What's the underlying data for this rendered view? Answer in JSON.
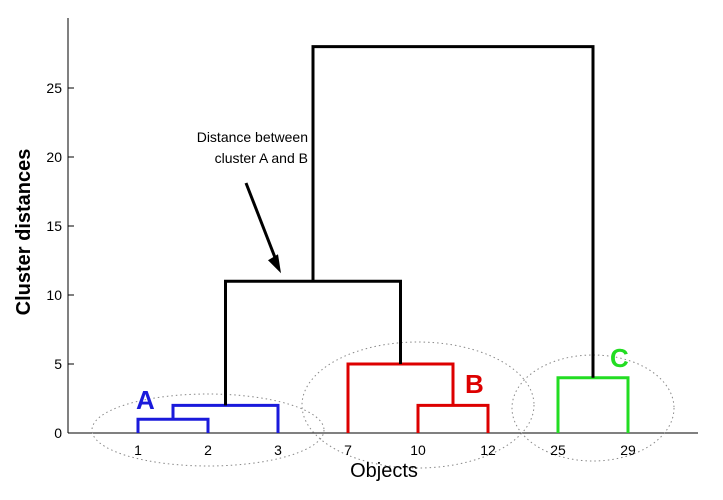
{
  "chart_data": {
    "type": "dendrogram",
    "xlabel": "Objects",
    "ylabel": "Cluster distances",
    "ylim": [
      0,
      29
    ],
    "yticks": [
      0,
      5,
      10,
      15,
      20,
      25
    ],
    "leaves": [
      "1",
      "2",
      "3",
      "7",
      "10",
      "12",
      "25",
      "29"
    ],
    "clusters": [
      {
        "name": "A",
        "color": "#1a1adb",
        "leaves": [
          "1",
          "2",
          "3"
        ]
      },
      {
        "name": "B",
        "color": "#dd0000",
        "leaves": [
          "7",
          "10",
          "12"
        ]
      },
      {
        "name": "C",
        "color": "#22dd22",
        "leaves": [
          "25",
          "29"
        ]
      }
    ],
    "merges": [
      {
        "left": "1",
        "right": "2",
        "height": 1,
        "color": "#1a1adb"
      },
      {
        "left": "(1,2)",
        "right": "3",
        "height": 2,
        "color": "#1a1adb"
      },
      {
        "left": "10",
        "right": "12",
        "height": 2,
        "color": "#dd0000"
      },
      {
        "left": "7",
        "right": "(10,12)",
        "height": 5,
        "color": "#dd0000"
      },
      {
        "left": "25",
        "right": "29",
        "height": 4,
        "color": "#22dd22"
      },
      {
        "left": "A",
        "right": "B",
        "height": 11,
        "color": "#000000"
      },
      {
        "left": "(A,B)",
        "right": "C",
        "height": 28,
        "color": "#000000"
      }
    ],
    "annotation": {
      "lines": [
        "Distance between",
        "cluster A and B"
      ],
      "points_to_height": 11
    }
  }
}
